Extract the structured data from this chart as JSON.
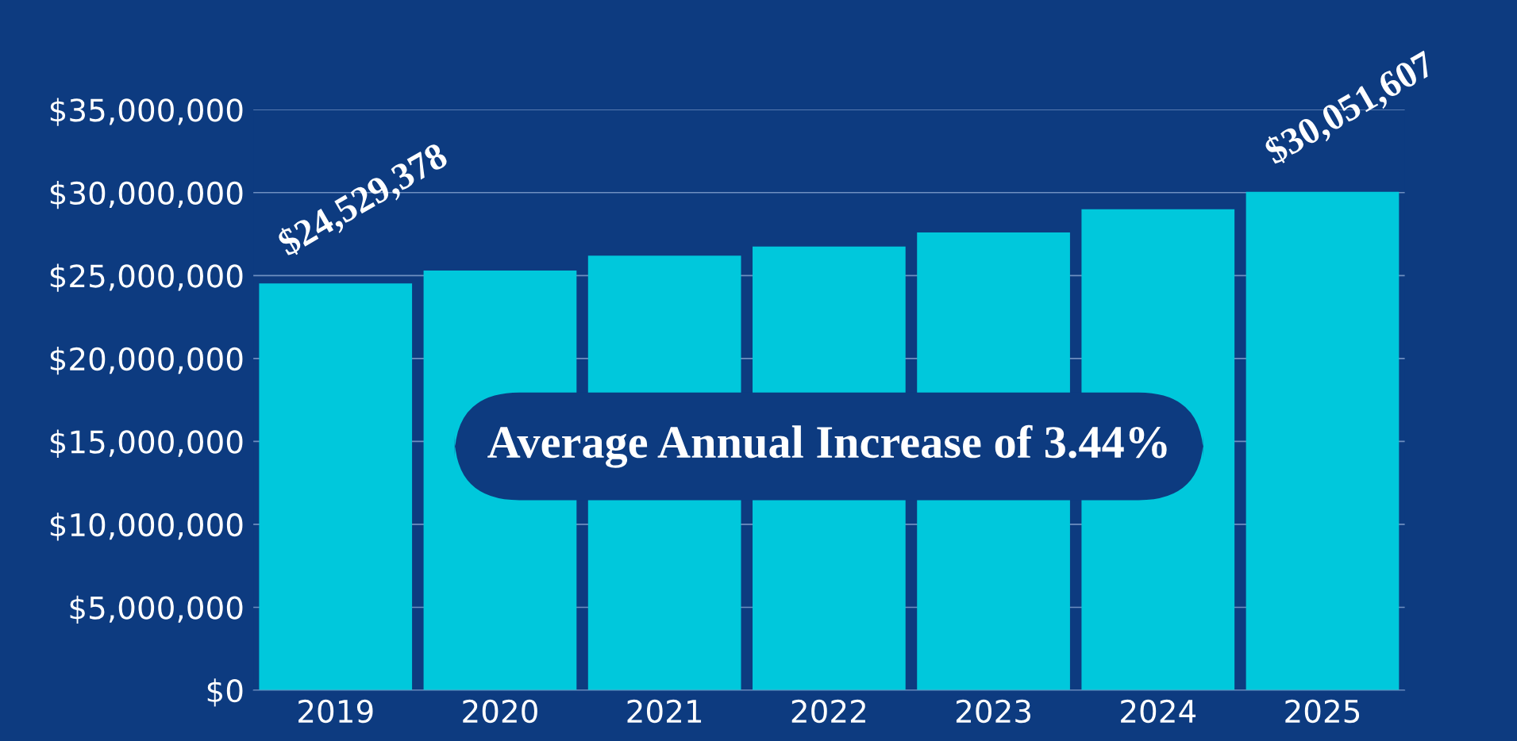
{
  "chart_data": {
    "type": "bar",
    "categories": [
      "2019",
      "2020",
      "2021",
      "2022",
      "2023",
      "2024",
      "2025"
    ],
    "values": [
      24529378,
      25300000,
      26200000,
      26750000,
      27600000,
      29000000,
      30051607
    ],
    "value_labels": [
      "$24,529,378",
      null,
      null,
      null,
      null,
      null,
      "$30,051,607"
    ],
    "color": "#00c8dc",
    "ylim": [
      0,
      35000000
    ],
    "yticks": [
      {
        "value": 0,
        "label": "$0"
      },
      {
        "value": 5000000,
        "label": "$5,000,000"
      },
      {
        "value": 10000000,
        "label": "$10,000,000"
      },
      {
        "value": 15000000,
        "label": "$15,000,000"
      },
      {
        "value": 20000000,
        "label": "$20,000,000"
      },
      {
        "value": 25000000,
        "label": "$25,000,000"
      },
      {
        "value": 30000000,
        "label": "$30,000,000"
      },
      {
        "value": 35000000,
        "label": "$35,000,000"
      }
    ],
    "grid": "y",
    "annotations": [
      "Average Annual Increase of 3.44%"
    ]
  }
}
